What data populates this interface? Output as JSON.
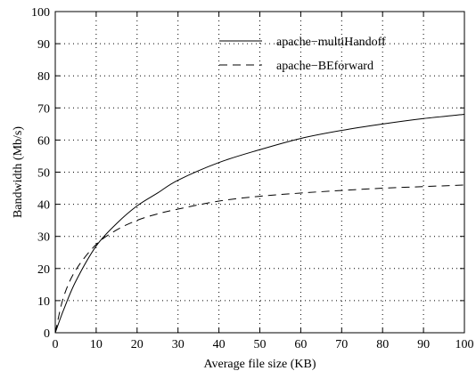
{
  "chart_data": {
    "type": "line",
    "xlabel": "Average file size (KB)",
    "ylabel": "Bandwidth (Mb/s)",
    "xlim": [
      0,
      100
    ],
    "ylim": [
      0,
      100
    ],
    "x_ticks": [
      0,
      10,
      20,
      30,
      40,
      50,
      60,
      70,
      80,
      90,
      100
    ],
    "y_ticks": [
      0,
      10,
      20,
      30,
      40,
      50,
      60,
      70,
      80,
      90,
      100
    ],
    "grid": true,
    "legend_position": "top-right",
    "series": [
      {
        "name": "apache−multiHandoff",
        "line_style": "solid",
        "x": [
          0,
          2,
          5,
          10,
          15,
          20,
          25,
          30,
          40,
          50,
          60,
          70,
          80,
          90,
          100
        ],
        "y": [
          0,
          7,
          16,
          27,
          34,
          39.5,
          43.5,
          47.5,
          53,
          57,
          60.5,
          63,
          65,
          66.7,
          68
        ]
      },
      {
        "name": "apache−BEforward",
        "line_style": "dashed",
        "x": [
          0,
          2,
          5,
          10,
          15,
          20,
          25,
          30,
          40,
          50,
          60,
          70,
          80,
          90,
          100
        ],
        "y": [
          0,
          11,
          19.5,
          27.5,
          32,
          35,
          37,
          38.5,
          41,
          42.5,
          43.5,
          44.3,
          45,
          45.5,
          46
        ]
      }
    ]
  }
}
